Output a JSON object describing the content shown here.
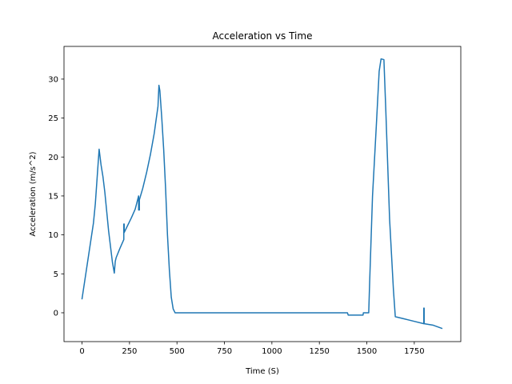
{
  "chart_data": {
    "type": "line",
    "title": "Acceleration vs Time",
    "xlabel": "Time (S)",
    "ylabel": "Acceleration (m/s^2)",
    "xlim": [
      -95,
      1995
    ],
    "ylim": [
      -3.7,
      34.2
    ],
    "xticks": [
      0,
      250,
      500,
      750,
      1000,
      1250,
      1500,
      1750
    ],
    "yticks": [
      0,
      5,
      10,
      15,
      20,
      25,
      30
    ],
    "grid": false,
    "legend": "none",
    "series": [
      {
        "color": "#1f77b4",
        "x": [
          0,
          60,
          70,
          80,
          90,
          95,
          100,
          110,
          120,
          130,
          140,
          150,
          160,
          170,
          175,
          180,
          200,
          220,
          220,
          222,
          222,
          240,
          260,
          280,
          298,
          298,
          302,
          302,
          320,
          340,
          360,
          380,
          400,
          405,
          410,
          420,
          430,
          440,
          450,
          460,
          470,
          480,
          490,
          500,
          750,
          1000,
          1250,
          1398,
          1402,
          1480,
          1482,
          1510,
          1515,
          1530,
          1550,
          1565,
          1575,
          1590,
          1600,
          1620,
          1640,
          1650,
          1700,
          1750,
          1800,
          1800,
          1802,
          1802,
          1850,
          1895
        ],
        "y": [
          1.8,
          11.5,
          14,
          17.5,
          21,
          20,
          19,
          17.5,
          15.5,
          13,
          10.5,
          8.5,
          6.5,
          5.1,
          6.6,
          7.1,
          8.3,
          9.4,
          11.4,
          11.4,
          10.3,
          11.2,
          12.2,
          13.3,
          15.0,
          13.2,
          13.2,
          14.5,
          16.0,
          18.0,
          20.3,
          23.0,
          26.5,
          29.2,
          28.5,
          25.0,
          21.0,
          16.0,
          10.0,
          5.5,
          2.0,
          0.5,
          0.0,
          0.0,
          0.0,
          0.0,
          0.0,
          0.0,
          -0.3,
          -0.3,
          0.0,
          0.0,
          4.0,
          15.0,
          24.0,
          31.0,
          32.6,
          32.5,
          26.0,
          12.0,
          3.0,
          -0.5,
          -0.8,
          -1.1,
          -1.4,
          0.6,
          0.6,
          -1.4,
          -1.6,
          -2.0
        ]
      }
    ]
  }
}
